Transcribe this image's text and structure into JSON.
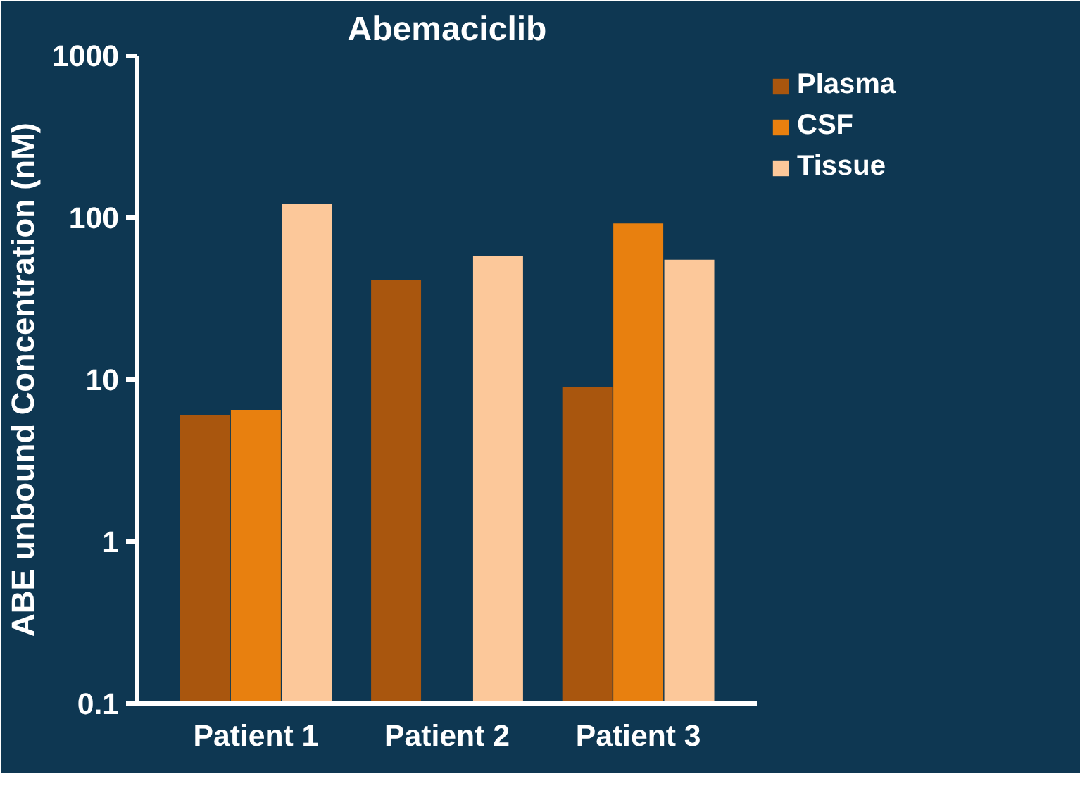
{
  "chart_data": {
    "type": "bar",
    "title": "Abemaciclib",
    "ylabel": "ABE unbound Concentration (nM)",
    "categories": [
      "Patient 1",
      "Patient 2",
      "Patient 3"
    ],
    "series": [
      {
        "name": "Plasma",
        "color": "#a9560e",
        "values": [
          6,
          41,
          9
        ]
      },
      {
        "name": "CSF",
        "color": "#e8800f",
        "values": [
          6.5,
          null,
          92
        ]
      },
      {
        "name": "Tissue",
        "color": "#fcc89a",
        "values": [
          122,
          58,
          55
        ]
      }
    ],
    "log": true,
    "ylim": [
      0.1,
      1000
    ],
    "yticks": [
      0.1,
      1,
      10,
      100,
      1000
    ],
    "grid": false,
    "legend": "top right"
  }
}
